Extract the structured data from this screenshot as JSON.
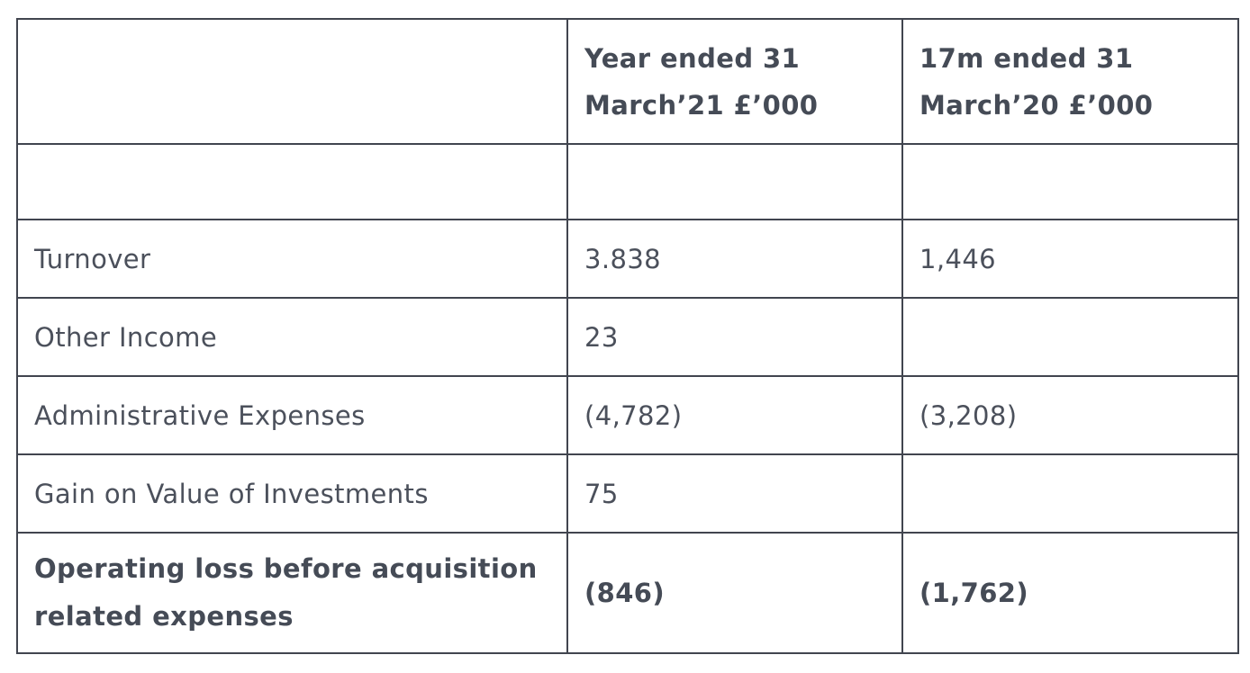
{
  "colors": {
    "border": "#41454f",
    "text": "#4b505b",
    "bold_text": "#454b56",
    "background": "#ffffff"
  },
  "table": {
    "header": {
      "col0": "",
      "col1": "Year ended 31 March’21 £’000",
      "col1_lines": [
        "Year ended 31",
        "March’21 £’000"
      ],
      "col2": "17m ended 31 March’20 £’000",
      "col2_lines": [
        "17m ended 31",
        "March’20 £’000"
      ]
    },
    "rows": [
      {
        "label": "Turnover",
        "year21": "3.838",
        "m17_20": "1,446"
      },
      {
        "label": "Other Income",
        "year21": "23",
        "m17_20": ""
      },
      {
        "label": "Administrative Expenses",
        "year21": "(4,782)",
        "m17_20": "(3,208)"
      },
      {
        "label": "Gain on Value of Investments",
        "year21": "75",
        "m17_20": ""
      },
      {
        "label": "Operating loss before acquisition related expenses",
        "label_lines": [
          "Operating loss before acquisition",
          "related expenses"
        ],
        "year21": "(846)",
        "m17_20": "(1,762)"
      }
    ]
  }
}
